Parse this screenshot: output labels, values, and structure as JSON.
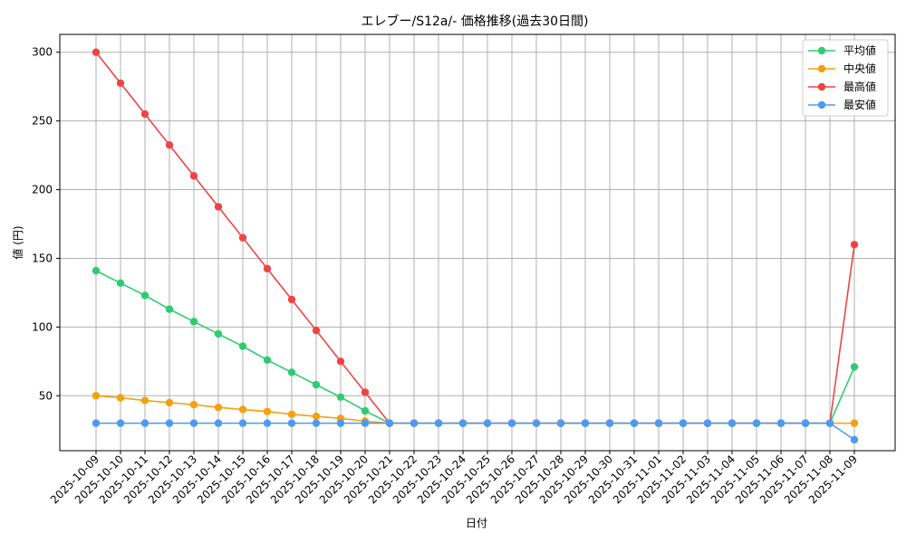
{
  "chart_data": {
    "type": "line",
    "title": "エレブー/S12a/- 価格推移(過去30日間)",
    "xlabel": "日付",
    "ylabel": "値 (円)",
    "categories": [
      "2025-10-09",
      "2025-10-10",
      "2025-10-11",
      "2025-10-12",
      "2025-10-13",
      "2025-10-14",
      "2025-10-15",
      "2025-10-16",
      "2025-10-17",
      "2025-10-18",
      "2025-10-19",
      "2025-10-20",
      "2025-10-21",
      "2025-10-22",
      "2025-10-23",
      "2025-10-24",
      "2025-10-25",
      "2025-10-26",
      "2025-10-27",
      "2025-10-28",
      "2025-10-29",
      "2025-10-30",
      "2025-10-31",
      "2025-11-01",
      "2025-11-02",
      "2025-11-03",
      "2025-11-04",
      "2025-11-05",
      "2025-11-06",
      "2025-11-07",
      "2025-11-08",
      "2025-11-09"
    ],
    "yticks": [
      50,
      100,
      150,
      200,
      250,
      300
    ],
    "ylim": [
      10,
      313
    ],
    "grid": true,
    "legend_position": "top-right",
    "series": [
      {
        "name": "平均値",
        "color": "#2ecc71",
        "values": [
          141,
          132,
          123,
          113,
          104,
          95,
          86,
          76,
          67,
          58,
          49,
          39,
          30,
          30,
          30,
          30,
          30,
          30,
          30,
          30,
          30,
          30,
          30,
          30,
          30,
          30,
          30,
          30,
          30,
          30,
          30,
          71
        ]
      },
      {
        "name": "中央値",
        "color": "#f5a00f",
        "values": [
          50,
          48.5,
          46.5,
          45,
          43.5,
          41.5,
          40,
          38.5,
          36.5,
          35,
          33.5,
          31.5,
          30,
          30,
          30,
          30,
          30,
          30,
          30,
          30,
          30,
          30,
          30,
          30,
          30,
          30,
          30,
          30,
          30,
          30,
          30,
          30
        ]
      },
      {
        "name": "最高値",
        "color": "#ef4444",
        "values": [
          300,
          277.5,
          255,
          232.5,
          210,
          187.5,
          165,
          142.5,
          120,
          97.5,
          75,
          52.5,
          30,
          30,
          30,
          30,
          30,
          30,
          30,
          30,
          30,
          30,
          30,
          30,
          30,
          30,
          30,
          30,
          30,
          30,
          30,
          160
        ]
      },
      {
        "name": "最安値",
        "color": "#4b9bf0",
        "values": [
          30,
          30,
          30,
          30,
          30,
          30,
          30,
          30,
          30,
          30,
          30,
          30,
          30,
          30,
          30,
          30,
          30,
          30,
          30,
          30,
          30,
          30,
          30,
          30,
          30,
          30,
          30,
          30,
          30,
          30,
          30,
          18
        ]
      }
    ]
  }
}
